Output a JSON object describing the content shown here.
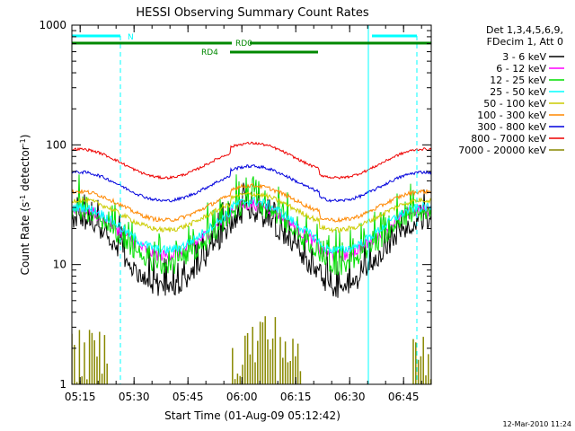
{
  "chart_data": {
    "type": "line",
    "title": "HESSI Observing Summary Count Rates",
    "xlabel": "Start Time (01-Aug-09 05:12:42)",
    "ylabel_main": "Count Rate (s",
    "ylabel_sup1": "-1",
    "ylabel_mid": " detector",
    "ylabel_sup2": "-1",
    "ylabel_end": ")",
    "y_scale": "log",
    "ylim": [
      1,
      1000
    ],
    "xlim_minutes": [
      0,
      100
    ],
    "x_ticks": [
      {
        "label": "05:15",
        "minute": 2.3
      },
      {
        "label": "05:30",
        "minute": 17.3
      },
      {
        "label": "05:45",
        "minute": 32.3
      },
      {
        "label": "06:00",
        "minute": 47.3
      },
      {
        "label": "06:15",
        "minute": 62.3
      },
      {
        "label": "06:30",
        "minute": 77.3
      },
      {
        "label": "06:45",
        "minute": 92.3
      }
    ],
    "y_ticks": [
      {
        "label": "1",
        "value": 1
      },
      {
        "label": "10",
        "value": 10
      },
      {
        "label": "100",
        "value": 100
      },
      {
        "label": "1000",
        "value": 1000
      }
    ],
    "legend_header": [
      "Det 1,3,4,5,6,9,",
      "FDecim 1, Att 0"
    ],
    "series": [
      {
        "name": "3 - 6 keV",
        "color": "#000000",
        "base": 12.0,
        "amp": 0.52,
        "floor": 3.3,
        "noise": 0.16
      },
      {
        "name": "6 - 12 keV",
        "color": "#ff00ff",
        "base": 18.5,
        "amp": 0.35,
        "floor": 0,
        "noise": 0.12
      },
      {
        "name": "12 - 25 keV",
        "color": "#00dd00",
        "base": 16.0,
        "amp": 0.42,
        "floor": 4.0,
        "noise": 0.14
      },
      {
        "name": "25 - 50 keV",
        "color": "#00ffff",
        "base": 20.0,
        "amp": 0.33,
        "floor": 0,
        "noise": 0.09
      },
      {
        "name": "50 - 100 keV",
        "color": "#cccc00",
        "base": 26.0,
        "amp": 0.23,
        "floor": 0,
        "noise": 0.05
      },
      {
        "name": "100 - 300 keV",
        "color": "#ff8800",
        "base": 31.0,
        "amp": 0.22,
        "floor": 0,
        "noise": 0.04
      },
      {
        "name": "300 - 800 keV",
        "color": "#0000dd",
        "base": 45.0,
        "amp": 0.22,
        "floor": 0,
        "noise": 0.03
      },
      {
        "name": "800 - 7000 keV",
        "color": "#ee0000",
        "base": 70.0,
        "amp": 0.22,
        "floor": 0,
        "noise": 0.025
      },
      {
        "name": "7000 - 20000 keV",
        "color": "#888800",
        "base": 0,
        "amp": 0,
        "floor": 0,
        "noise": 0
      }
    ],
    "flags": {
      "n_label": "N",
      "rd0_label": "RD0",
      "rd4_label": "RD4"
    },
    "footer_date": "12-Mar-2010 11:24"
  }
}
